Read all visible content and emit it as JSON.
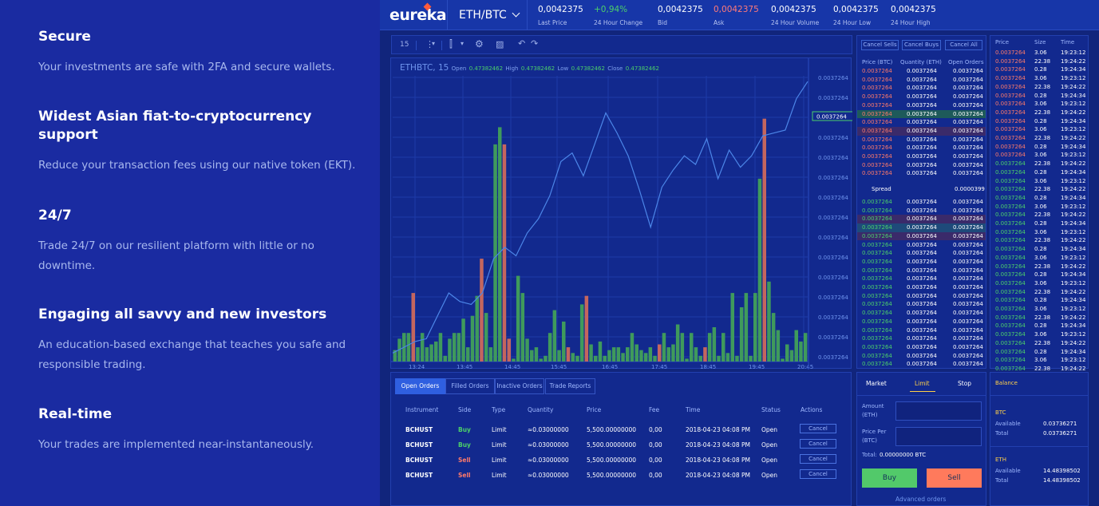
{
  "features": [
    {
      "title": "Secure",
      "desc": "Your investments are safe with 2FA and secure wallets."
    },
    {
      "title": "Widest Asian fiat-to-cryptocurrency support",
      "desc": "Reduce your transaction fees using our native token (EKT)."
    },
    {
      "title": "24/7",
      "desc": "Trade 24/7 on our resilient platform with little or no downtime."
    },
    {
      "title": "Engaging all savvy and new investors",
      "desc": "An education-based exchange that teaches you safe and responsible trading."
    },
    {
      "title": "Real-time",
      "desc": "Your trades are implemented near-instantaneously."
    }
  ],
  "header": {
    "logo": "eureka",
    "pair": "ETH/BTC",
    "stats": [
      {
        "value": "0,0042375",
        "label": "Last Price",
        "color": "#ffffff"
      },
      {
        "value": "+0,94%",
        "label": "24 Hour Change",
        "color": "#4cd06a"
      },
      {
        "value": "0,0042375",
        "label": "Bid",
        "color": "#ffffff"
      },
      {
        "value": "0,0042375",
        "label": "Ask",
        "color": "#ff7a7a"
      },
      {
        "value": "0,0042375",
        "label": "24 Hour Volume",
        "color": "#ffffff"
      },
      {
        "value": "0,0042375",
        "label": "24 Hour Low",
        "color": "#ffffff"
      },
      {
        "value": "0,0042375",
        "label": "24 Hour High",
        "color": "#ffffff"
      }
    ]
  },
  "toolbar": {
    "interval": "15"
  },
  "chart": {
    "symbol": "ETHBTC, 15",
    "open_label": "Open",
    "open": "0.47382462",
    "high_label": "High",
    "high": "0.47382462",
    "low_label": "Low",
    "low": "0.47382462",
    "close_label": "Close",
    "close": "0.47382462",
    "price_tag": "0.0037264"
  },
  "chart_data": {
    "type": "bar",
    "x_ticks": [
      "13:24",
      "13:45",
      "14:45",
      "15:45",
      "16:45",
      "17:45",
      "18:45",
      "19:45",
      "20:45"
    ],
    "y_ticks": [
      "0.0037264",
      "0.0037264",
      "0.0037264",
      "0.0037264",
      "0.0037264",
      "0.0037264",
      "0.0037264",
      "0.0037264",
      "0.0037264",
      "0.0037264",
      "0.0037264",
      "0.0037264",
      "0.0037264",
      "0.0037264",
      "0.0037264"
    ],
    "volume_fraction": [
      0.04,
      0.08,
      0.1,
      0.1,
      0.24,
      0.05,
      0.1,
      0.05,
      0.06,
      0.07,
      0.1,
      0.02,
      0.08,
      0.1,
      0.1,
      0.15,
      0.05,
      0.16,
      0.23,
      0.36,
      0.17,
      0.05,
      0.76,
      0.82,
      0.76,
      0.08,
      0.01,
      0.3,
      0.24,
      0.08,
      0.04,
      0.05,
      0.01,
      0.02,
      0.1,
      0.18,
      0.04,
      0.14,
      0.05,
      0.03,
      0.02,
      0.2,
      0.23,
      0.06,
      0.02,
      0.07,
      0.02,
      0.04,
      0.05,
      0.05,
      0.03,
      0.05,
      0.1,
      0.06,
      0.04,
      0.03,
      0.05,
      0.02,
      0.06,
      0.1,
      0.05,
      0.06,
      0.13,
      0.1,
      0.01,
      0.1,
      0.05,
      0.02,
      0.05,
      0.1,
      0.12,
      0.02,
      0.1,
      0.03,
      0.24,
      0.02,
      0.19,
      0.24,
      0.02,
      0.24,
      0.64,
      0.85,
      0.28,
      0.17,
      0.11,
      0.01,
      0.06,
      0.04,
      0.11,
      0.07,
      0.1
    ],
    "volume_up": [
      1,
      1,
      1,
      1,
      0,
      1,
      1,
      1,
      1,
      1,
      1,
      1,
      1,
      1,
      1,
      1,
      1,
      1,
      1,
      0,
      1,
      1,
      1,
      1,
      0,
      0,
      1,
      1,
      1,
      1,
      1,
      1,
      1,
      1,
      1,
      1,
      1,
      1,
      0,
      1,
      1,
      1,
      0,
      1,
      1,
      1,
      1,
      1,
      1,
      1,
      1,
      1,
      1,
      1,
      1,
      1,
      1,
      1,
      0,
      1,
      1,
      1,
      1,
      1,
      1,
      1,
      1,
      1,
      0,
      1,
      1,
      1,
      1,
      1,
      1,
      1,
      1,
      1,
      1,
      1,
      1,
      0,
      1,
      1,
      1,
      1,
      1,
      1,
      1,
      1,
      1
    ],
    "price_line": [
      0.97,
      0.95,
      0.93,
      0.92,
      0.84,
      0.76,
      0.79,
      0.8,
      0.76,
      0.64,
      0.6,
      0.63,
      0.55,
      0.5,
      0.42,
      0.3,
      0.27,
      0.35,
      0.24,
      0.13,
      0.2,
      0.28,
      0.4,
      0.53,
      0.39,
      0.33,
      0.28,
      0.31,
      0.22,
      0.36,
      0.26,
      0.32,
      0.28,
      0.21,
      0.2,
      0.19,
      0.08,
      0.02
    ]
  },
  "orderbook": {
    "buttons": [
      "Cancel Sells",
      "Cancel Buys",
      "Cancel All"
    ],
    "headers": [
      "Price (BTC)",
      "Quantity (ETH)",
      "Open Orders"
    ],
    "row_price": "0.0037264",
    "row_qty": "0.0037264",
    "row_open": "0.0037264",
    "spread_label": "Spread",
    "spread": "0.0000399"
  },
  "trades": {
    "headers": [
      "Price",
      "Size",
      "Time"
    ],
    "rows": [
      {
        "price": "0.0037264",
        "size": "3.06",
        "time": "19:23:12",
        "side": "sell"
      },
      {
        "price": "0.0037264",
        "size": "22.38",
        "time": "19:24:22",
        "side": "sell"
      },
      {
        "price": "0.0037264",
        "size": "0.28",
        "time": "19:24:34",
        "side": "sell"
      },
      {
        "price": "0.0037264",
        "size": "3.06",
        "time": "19:23:12",
        "side": "sell"
      },
      {
        "price": "0.0037264",
        "size": "22.38",
        "time": "19:24:22",
        "side": "sell"
      },
      {
        "price": "0.0037264",
        "size": "0.28",
        "time": "19:24:34",
        "side": "sell"
      },
      {
        "price": "0.0037264",
        "size": "3.06",
        "time": "19:23:12",
        "side": "sell"
      },
      {
        "price": "0.0037264",
        "size": "22.38",
        "time": "19:24:22",
        "side": "sell"
      },
      {
        "price": "0.0037264",
        "size": "0.28",
        "time": "19:24:34",
        "side": "sell"
      },
      {
        "price": "0.0037264",
        "size": "3.06",
        "time": "19:23:12",
        "side": "sell"
      },
      {
        "price": "0.0037264",
        "size": "22.38",
        "time": "19:24:22",
        "side": "sell"
      },
      {
        "price": "0.0037264",
        "size": "0.28",
        "time": "19:24:34",
        "side": "sell"
      },
      {
        "price": "0.0037264",
        "size": "3.06",
        "time": "19:23:12",
        "side": "sell"
      },
      {
        "price": "0.0037264",
        "size": "22.38",
        "time": "19:24:22",
        "side": "buy"
      },
      {
        "price": "0.0037264",
        "size": "0.28",
        "time": "19:24:34",
        "side": "buy"
      },
      {
        "price": "0.0037264",
        "size": "3.06",
        "time": "19:23:12",
        "side": "buy"
      },
      {
        "price": "0.0037264",
        "size": "22.38",
        "time": "19:24:22",
        "side": "buy"
      },
      {
        "price": "0.0037264",
        "size": "0.28",
        "time": "19:24:34",
        "side": "buy"
      },
      {
        "price": "0.0037264",
        "size": "3.06",
        "time": "19:23:12",
        "side": "buy"
      },
      {
        "price": "0.0037264",
        "size": "22.38",
        "time": "19:24:22",
        "side": "buy"
      },
      {
        "price": "0.0037264",
        "size": "0.28",
        "time": "19:24:34",
        "side": "buy"
      },
      {
        "price": "0.0037264",
        "size": "3.06",
        "time": "19:23:12",
        "side": "buy"
      },
      {
        "price": "0.0037264",
        "size": "22.38",
        "time": "19:24:22",
        "side": "buy"
      },
      {
        "price": "0.0037264",
        "size": "0.28",
        "time": "19:24:34",
        "side": "buy"
      },
      {
        "price": "0.0037264",
        "size": "3.06",
        "time": "19:23:12",
        "side": "buy"
      },
      {
        "price": "0.0037264",
        "size": "22.38",
        "time": "19:24:22",
        "side": "buy"
      },
      {
        "price": "0.0037264",
        "size": "0.28",
        "time": "19:24:34",
        "side": "buy"
      },
      {
        "price": "0.0037264",
        "size": "3.06",
        "time": "19:23:12",
        "side": "buy"
      },
      {
        "price": "0.0037264",
        "size": "22.38",
        "time": "19:24:22",
        "side": "buy"
      },
      {
        "price": "0.0037264",
        "size": "0.28",
        "time": "19:24:34",
        "side": "buy"
      },
      {
        "price": "0.0037264",
        "size": "3.06",
        "time": "19:23:12",
        "side": "buy"
      },
      {
        "price": "0.0037264",
        "size": "22.38",
        "time": "19:24:22",
        "side": "buy"
      },
      {
        "price": "0.0037264",
        "size": "0.28",
        "time": "19:24:34",
        "side": "buy"
      },
      {
        "price": "0.0037264",
        "size": "3.06",
        "time": "19:23:12",
        "side": "buy"
      },
      {
        "price": "0.0037264",
        "size": "22.38",
        "time": "19:24:22",
        "side": "buy"
      },
      {
        "price": "0.0037264",
        "size": "0.28",
        "time": "19:24:34",
        "side": "buy"
      },
      {
        "price": "0.0037264",
        "size": "3.06",
        "time": "19:23:12",
        "side": "buy"
      },
      {
        "price": "0.0037264",
        "size": "22.38",
        "time": "19:24:22",
        "side": "buy"
      },
      {
        "price": "0.0037264",
        "size": "0.28",
        "time": "19:24:34",
        "side": "buy"
      }
    ]
  },
  "orders": {
    "tabs": [
      "Open Orders",
      "Filled Orders",
      "Inactive Orders",
      "Trade Reports"
    ],
    "headers": [
      "Instrument",
      "Side",
      "Type",
      "Quantity",
      "Price",
      "Fee",
      "Time",
      "Status",
      "Actions"
    ],
    "rows": [
      {
        "instrument": "BCHUST",
        "side": "Buy",
        "type": "Limit",
        "qty": "≈0.03000000",
        "price": "5,500.00000000",
        "fee": "0,00",
        "time": "2018-04-23 04:08 PM",
        "status": "Open",
        "action": "Cancel"
      },
      {
        "instrument": "BCHUST",
        "side": "Buy",
        "type": "Limit",
        "qty": "≈0.03000000",
        "price": "5,500.00000000",
        "fee": "0,00",
        "time": "2018-04-23 04:08 PM",
        "status": "Open",
        "action": "Cancel"
      },
      {
        "instrument": "BCHUST",
        "side": "Sell",
        "type": "Limit",
        "qty": "≈0.03000000",
        "price": "5,500.00000000",
        "fee": "0,00",
        "time": "2018-04-23 04:08 PM",
        "status": "Open",
        "action": "Cancel"
      },
      {
        "instrument": "BCHUST",
        "side": "Sell",
        "type": "Limit",
        "qty": "≈0.03000000",
        "price": "5,500.00000000",
        "fee": "0,00",
        "time": "2018-04-23 04:08 PM",
        "status": "Open",
        "action": "Cancel"
      }
    ]
  },
  "form": {
    "tabs": [
      "Market",
      "Limit",
      "Stop"
    ],
    "amount_label": "Amount (ETH)",
    "price_label": "Price Per (BTC)",
    "total_label": "Total:",
    "total_value": "0.00000000 BTC",
    "buy": "Buy",
    "sell": "Sell",
    "advanced": "Advanced orders"
  },
  "balance": {
    "title": "Balance",
    "assets": [
      {
        "name": "BTC",
        "available_label": "Available",
        "available": "0.03736271",
        "total_label": "Total",
        "total": "0.03736271"
      },
      {
        "name": "ETH",
        "available_label": "Available",
        "available": "14.48398502",
        "total_label": "Total",
        "total": "14.48398502"
      }
    ]
  },
  "colors": {
    "buy": "#4cd06a",
    "sell": "#ff7a6a",
    "bar_up": "#3f9a5c",
    "bar_down": "#c4665e",
    "line": "#4c86e8"
  }
}
